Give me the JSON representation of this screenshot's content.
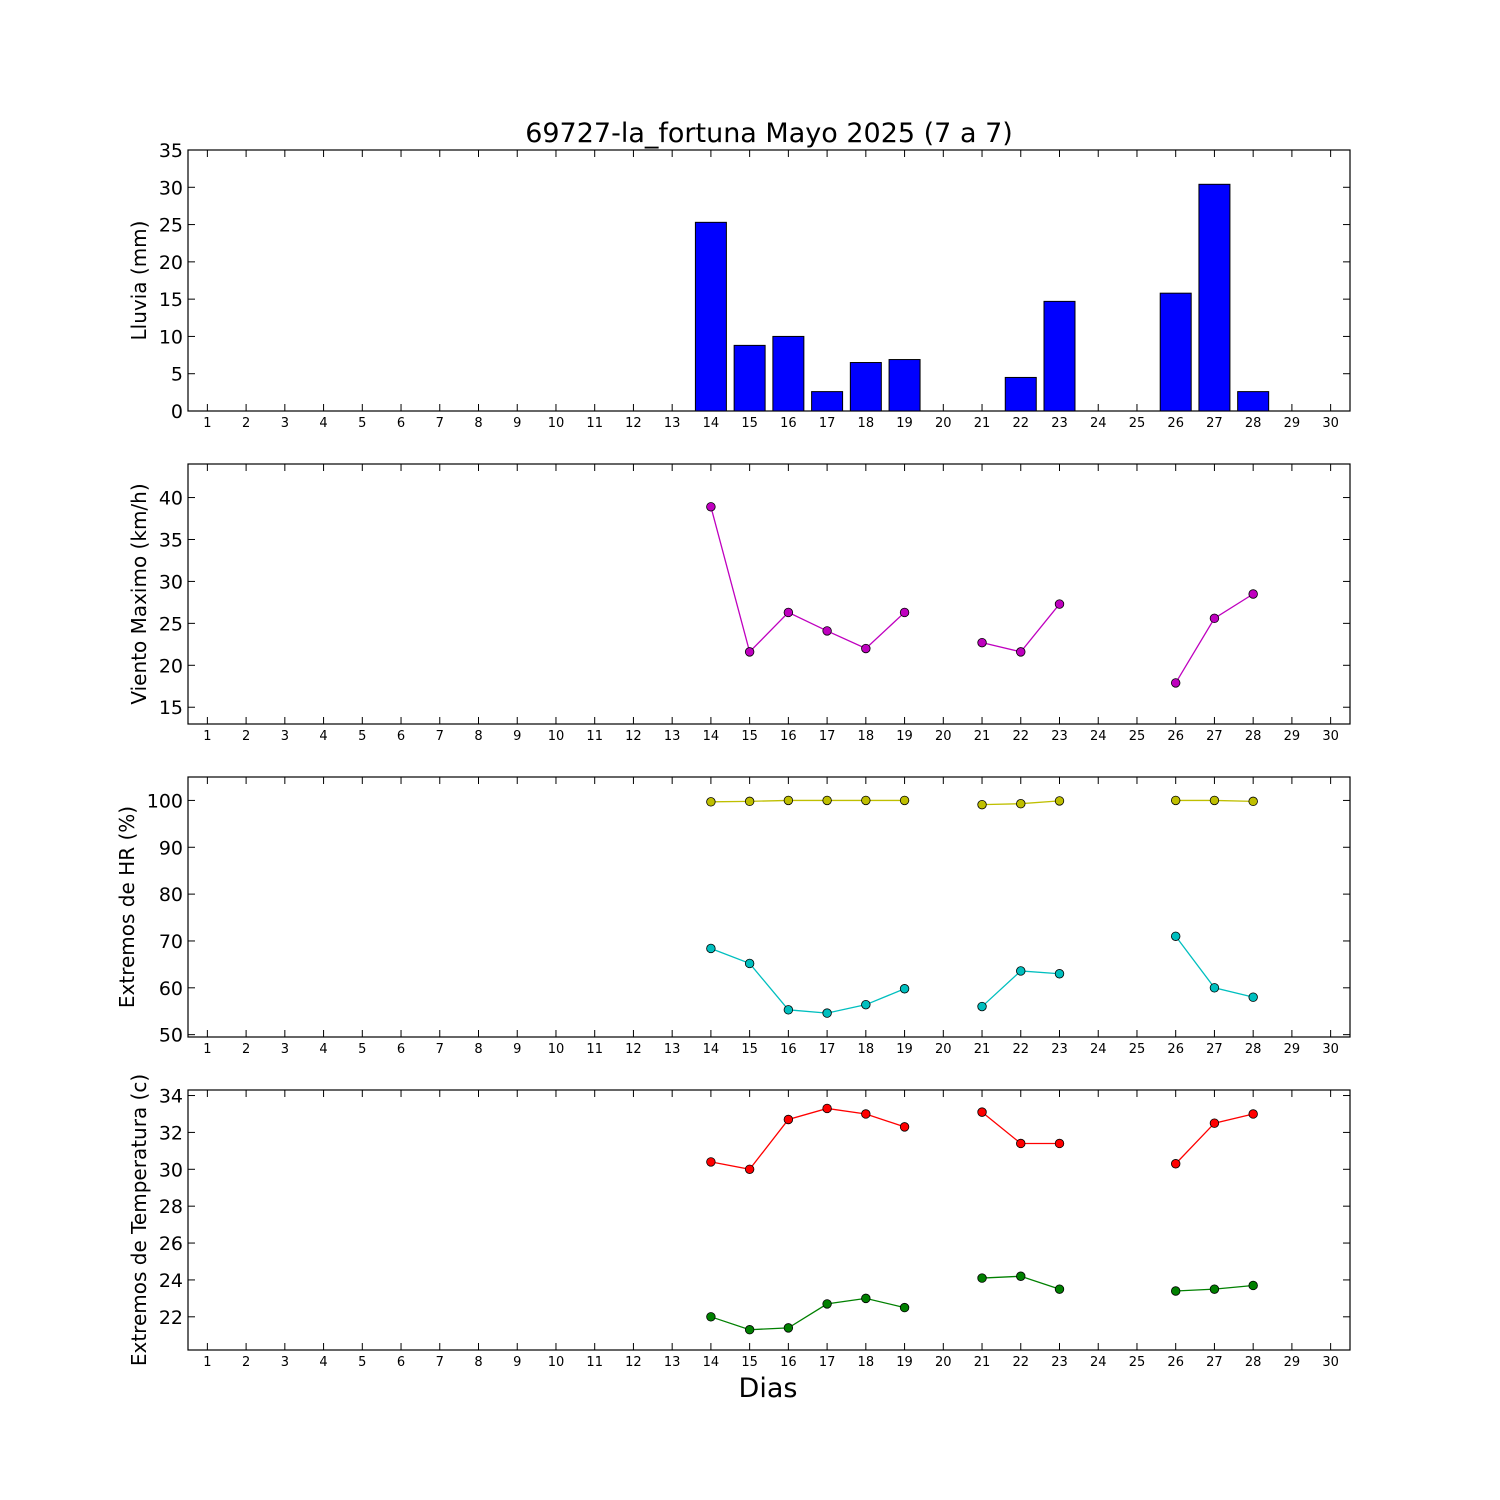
{
  "chart_data": {
    "title": "69727-la_fortuna Mayo 2025  (7 a 7)",
    "xlabel": "Dias",
    "x_ticks": [
      1,
      2,
      3,
      4,
      5,
      6,
      7,
      8,
      9,
      10,
      11,
      12,
      13,
      14,
      15,
      16,
      17,
      18,
      19,
      20,
      21,
      22,
      23,
      24,
      25,
      26,
      27,
      28,
      29,
      30
    ],
    "panels": [
      {
        "type": "bar",
        "ylabel": "Lluvia (mm)",
        "ylim": [
          0,
          35
        ],
        "yticks": [
          0,
          5,
          10,
          15,
          20,
          25,
          30,
          35
        ],
        "series": [
          {
            "color": "#0000ff",
            "points": [
              [
                14,
                25.3
              ],
              [
                15,
                8.8
              ],
              [
                16,
                10.0
              ],
              [
                17,
                2.6
              ],
              [
                18,
                6.5
              ],
              [
                19,
                6.9
              ],
              [
                22,
                4.5
              ],
              [
                23,
                14.7
              ],
              [
                26,
                15.8
              ],
              [
                27,
                30.4
              ],
              [
                28,
                2.6
              ]
            ]
          }
        ]
      },
      {
        "type": "line",
        "ylabel": "Viento Maximo (km/h)",
        "ylim": [
          13,
          44
        ],
        "yticks": [
          15,
          20,
          25,
          30,
          35,
          40
        ],
        "series": [
          {
            "color": "#bf00bf",
            "segments": [
              [
                [
                  14,
                  38.9
                ],
                [
                  15,
                  21.6
                ],
                [
                  16,
                  26.3
                ],
                [
                  17,
                  24.1
                ],
                [
                  18,
                  22.0
                ],
                [
                  19,
                  26.3
                ]
              ],
              [
                [
                  21,
                  22.7
                ],
                [
                  22,
                  21.6
                ],
                [
                  23,
                  27.3
                ]
              ],
              [
                [
                  26,
                  17.9
                ],
                [
                  27,
                  25.6
                ],
                [
                  28,
                  28.5
                ]
              ]
            ]
          }
        ]
      },
      {
        "type": "line",
        "ylabel": "Extremos de HR (%)",
        "ylim": [
          49.5,
          105
        ],
        "yticks": [
          50,
          60,
          70,
          80,
          90,
          100
        ],
        "series": [
          {
            "color": "#bfbf00",
            "segments": [
              [
                [
                  14,
                  99.7
                ],
                [
                  15,
                  99.8
                ],
                [
                  16,
                  100
                ],
                [
                  17,
                  100
                ],
                [
                  18,
                  100
                ],
                [
                  19,
                  100
                ]
              ],
              [
                [
                  21,
                  99.1
                ],
                [
                  22,
                  99.3
                ],
                [
                  23,
                  99.9
                ]
              ],
              [
                [
                  26,
                  100
                ],
                [
                  27,
                  100
                ],
                [
                  28,
                  99.8
                ]
              ]
            ]
          },
          {
            "color": "#00bfbf",
            "segments": [
              [
                [
                  14,
                  68.4
                ],
                [
                  15,
                  65.2
                ],
                [
                  16,
                  55.3
                ],
                [
                  17,
                  54.6
                ],
                [
                  18,
                  56.4
                ],
                [
                  19,
                  59.8
                ]
              ],
              [
                [
                  21,
                  56.0
                ],
                [
                  22,
                  63.6
                ],
                [
                  23,
                  63.0
                ]
              ],
              [
                [
                  26,
                  71.0
                ],
                [
                  27,
                  60.0
                ],
                [
                  28,
                  58.0
                ]
              ]
            ]
          }
        ]
      },
      {
        "type": "line",
        "ylabel": "Extremos de Temperatura (c)",
        "ylim": [
          20.2,
          34.3
        ],
        "yticks": [
          22,
          24,
          26,
          28,
          30,
          32,
          34
        ],
        "series": [
          {
            "color": "#ff0000",
            "segments": [
              [
                [
                  14,
                  30.4
                ],
                [
                  15,
                  30.0
                ],
                [
                  16,
                  32.7
                ],
                [
                  17,
                  33.3
                ],
                [
                  18,
                  33.0
                ],
                [
                  19,
                  32.3
                ]
              ],
              [
                [
                  21,
                  33.1
                ],
                [
                  22,
                  31.4
                ],
                [
                  23,
                  31.4
                ]
              ],
              [
                [
                  26,
                  30.3
                ],
                [
                  27,
                  32.5
                ],
                [
                  28,
                  33.0
                ]
              ]
            ]
          },
          {
            "color": "#008000",
            "segments": [
              [
                [
                  14,
                  22.0
                ],
                [
                  15,
                  21.3
                ],
                [
                  16,
                  21.4
                ],
                [
                  17,
                  22.7
                ],
                [
                  18,
                  23.0
                ],
                [
                  19,
                  22.5
                ]
              ],
              [
                [
                  21,
                  24.1
                ],
                [
                  22,
                  24.2
                ],
                [
                  23,
                  23.5
                ]
              ],
              [
                [
                  26,
                  23.4
                ],
                [
                  27,
                  23.5
                ],
                [
                  28,
                  23.7
                ]
              ]
            ]
          }
        ]
      }
    ]
  }
}
